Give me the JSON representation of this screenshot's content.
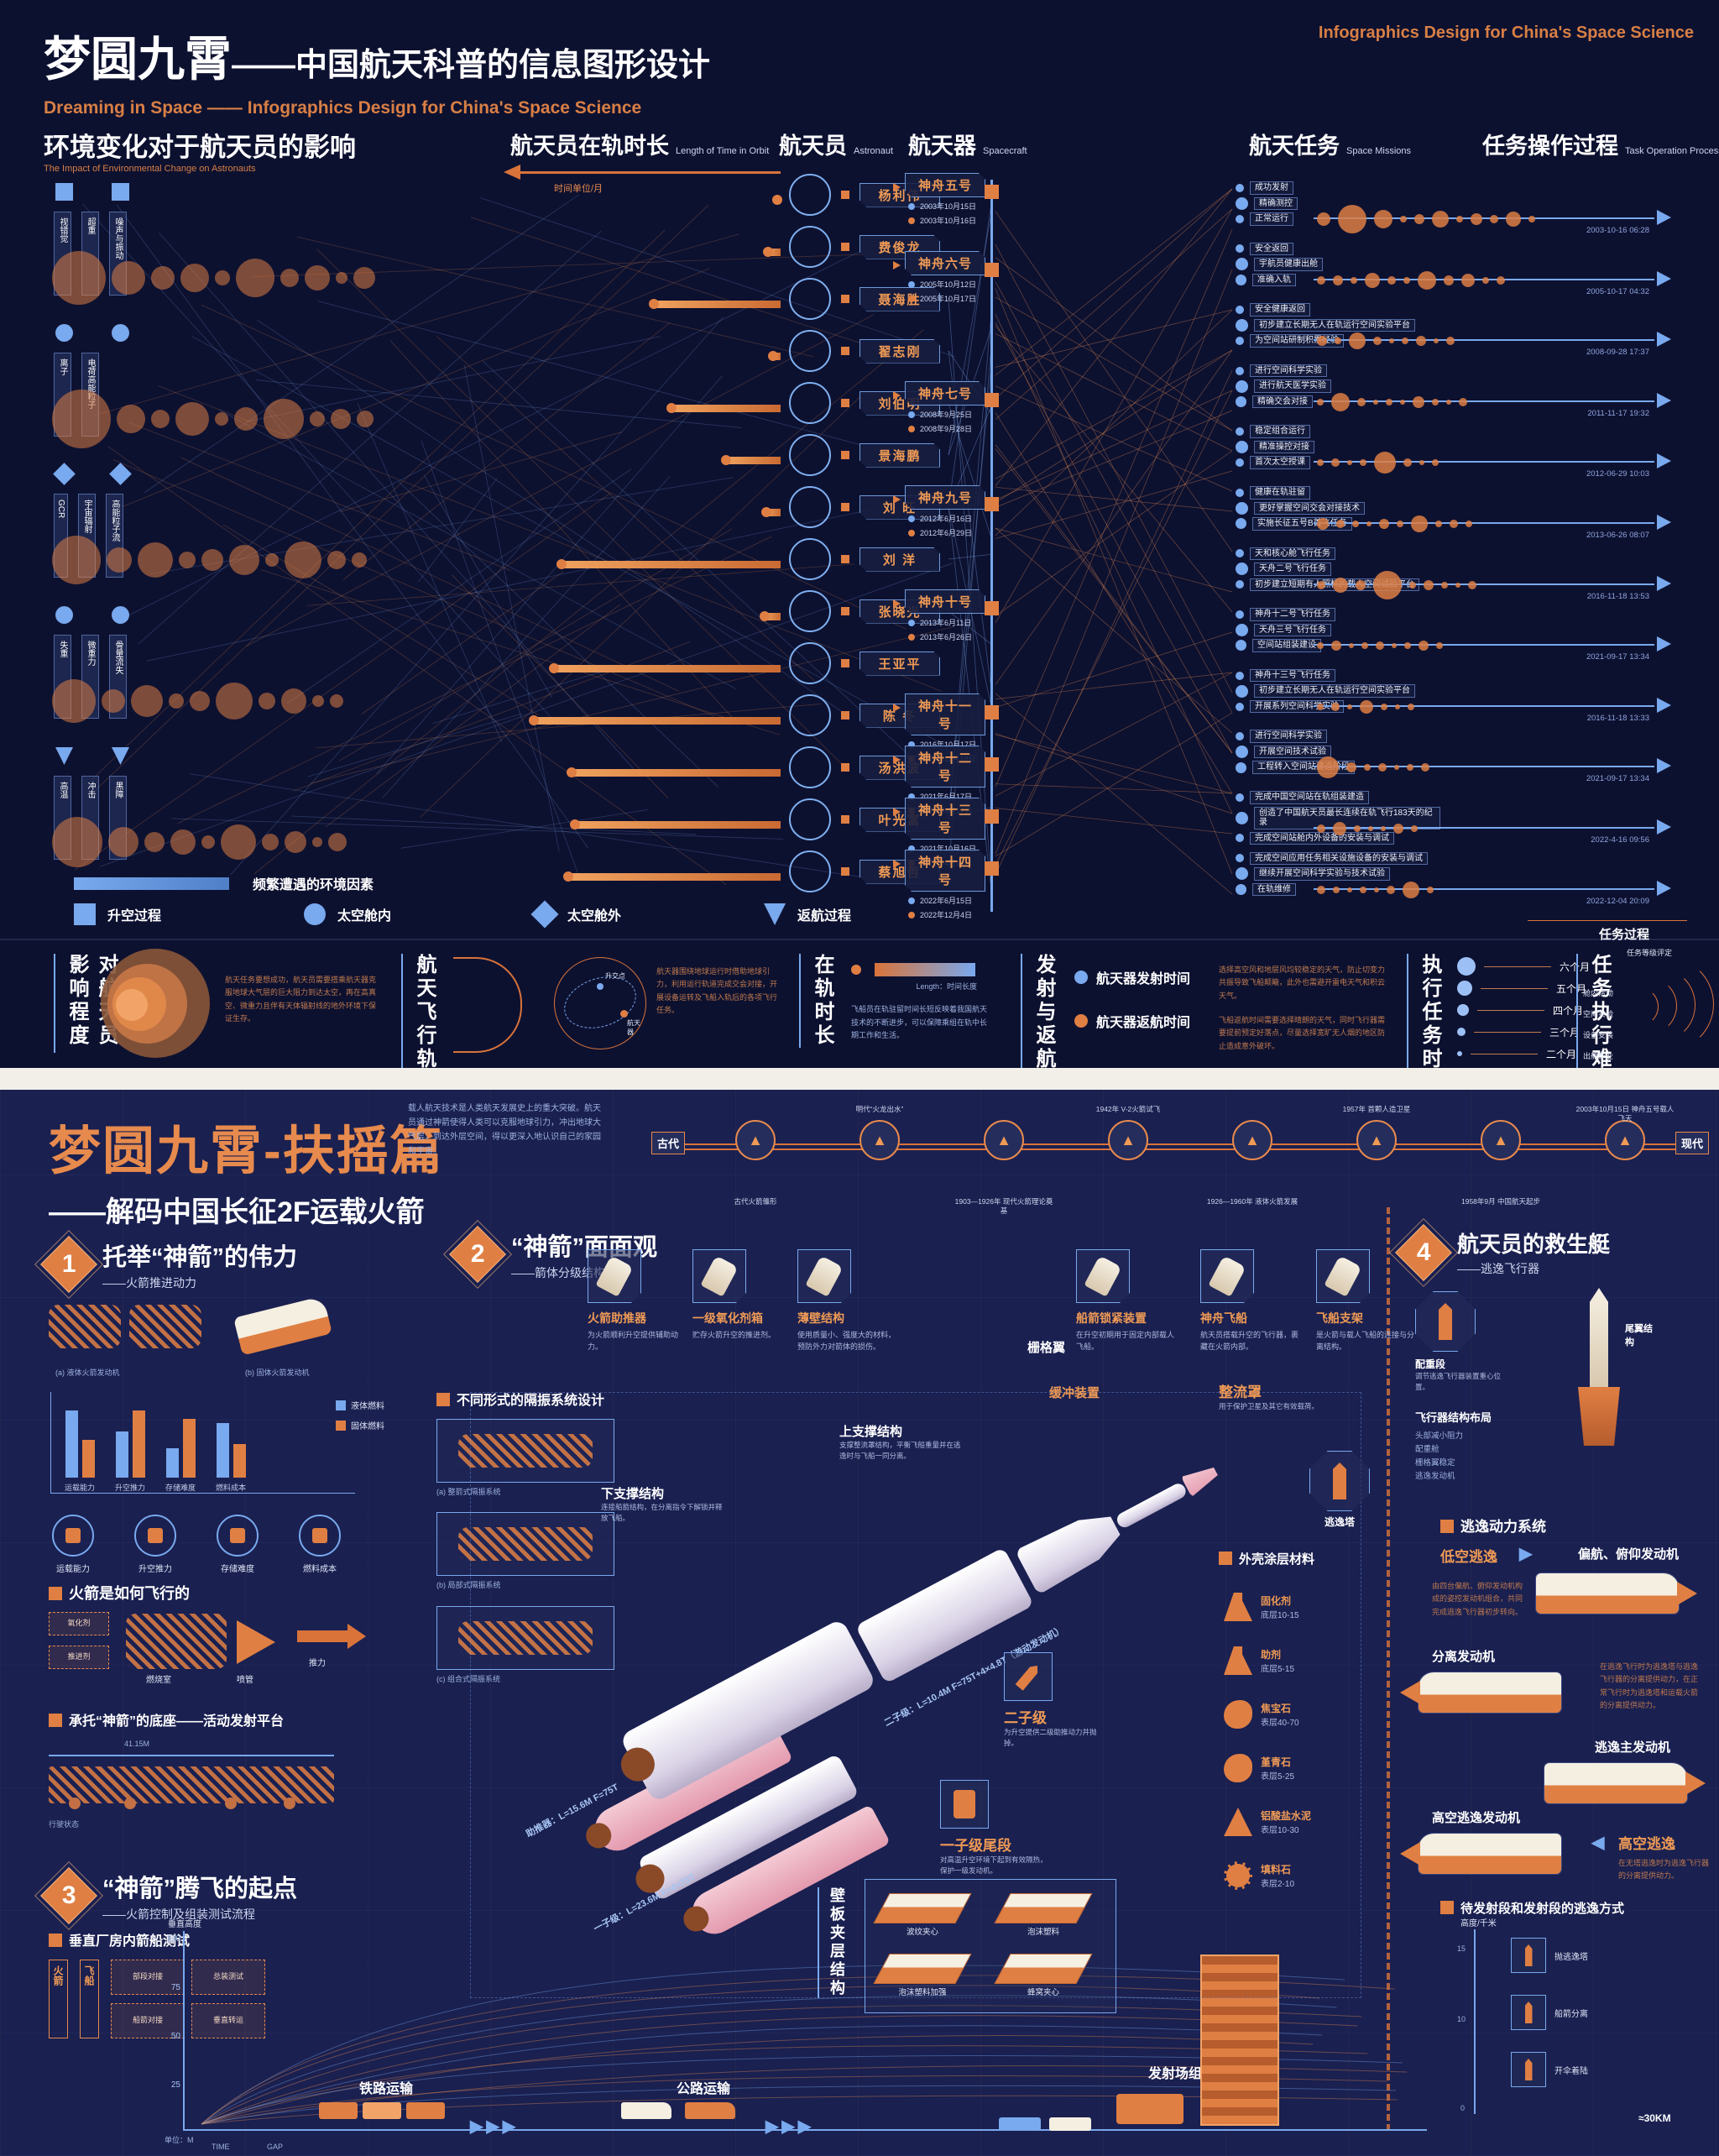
{
  "header": {
    "title_main": "梦圆九霄",
    "title_rest": "——中国航天科普的信息图形设计",
    "subtitle": "Dreaming in Space —— Infographics Design for China's Space Science",
    "corner": "Infographics Design for China's Space Science"
  },
  "cols": {
    "time": "航天员在轨时长",
    "time_en": "Length of Time in Orbit",
    "astro": "航天员",
    "astro_en": "Astronaut",
    "craft": "航天器",
    "craft_en": "Spacecraft",
    "mission": "航天任务",
    "mission_en": "Space Missions",
    "task": "任务操作过程",
    "task_en": "Task Operation Process",
    "axis_label": "时间单位/月"
  },
  "env": {
    "title": "环境变化对于航天员的影响",
    "title_en": "The Impact of Environmental Change on Astronauts",
    "legend_bar": "频繁遭遇的环境因素",
    "legend_items": [
      {
        "shape": "square",
        "label": "升空过程"
      },
      {
        "shape": "circle",
        "label": "太空舱内"
      },
      {
        "shape": "diamond",
        "label": "太空舱外"
      },
      {
        "shape": "triangle",
        "label": "返航过程"
      }
    ],
    "rows": [
      {
        "shape": "square",
        "labels": [
          "视错觉",
          "超重",
          "噪声与振动"
        ],
        "bubbles": [
          64,
          40,
          28,
          34,
          18,
          46,
          22,
          30,
          14,
          26
        ]
      },
      {
        "shape": "circle",
        "labels": [
          "离子",
          "电荷高能粒子"
        ],
        "bubbles": [
          70,
          34,
          22,
          40,
          16,
          28,
          48,
          18,
          24,
          20
        ]
      },
      {
        "shape": "diamond",
        "labels": [
          "GCR",
          "宇宙辐射",
          "高能粒子流"
        ],
        "bubbles": [
          58,
          30,
          42,
          20,
          26,
          36,
          16,
          44,
          22,
          18
        ]
      },
      {
        "shape": "circle",
        "labels": [
          "失重",
          "微重力",
          "骨量流失"
        ],
        "bubbles": [
          52,
          28,
          38,
          18,
          24,
          44,
          20,
          30,
          14,
          16
        ]
      },
      {
        "shape": "triangle",
        "labels": [
          "高温",
          "冲击",
          "黑障"
        ],
        "bubbles": [
          60,
          36,
          24,
          30,
          16,
          42,
          20,
          26,
          12,
          22
        ]
      }
    ]
  },
  "astronauts": [
    {
      "name": "杨利伟",
      "months": 0.12
    },
    {
      "name": "费俊龙",
      "months": 0.4
    },
    {
      "name": "聂海胜",
      "months": 3.7
    },
    {
      "name": "翟志刚",
      "months": 0.25
    },
    {
      "name": "刘伯明",
      "months": 3.2
    },
    {
      "name": "景海鹏",
      "months": 1.6
    },
    {
      "name": "刘  旺",
      "months": 0.45
    },
    {
      "name": "刘  洋",
      "months": 6.4
    },
    {
      "name": "张晓光",
      "months": 0.5
    },
    {
      "name": "王亚平",
      "months": 6.6
    },
    {
      "name": "陈  冬",
      "months": 7.2
    },
    {
      "name": "汤洪波",
      "months": 6.1
    },
    {
      "name": "叶光富",
      "months": 6.0
    },
    {
      "name": "蔡旭哲",
      "months": 6.2
    }
  ],
  "spacecraft": [
    {
      "name": "神舟五号",
      "launch": "2003年10月15日",
      "ret": "2003年10月16日",
      "row": 0
    },
    {
      "name": "神舟六号",
      "launch": "2005年10月12日",
      "ret": "2005年10月17日",
      "row": 1.5
    },
    {
      "name": "神舟七号",
      "launch": "2008年9月25日",
      "ret": "2008年9月28日",
      "row": 4
    },
    {
      "name": "神舟九号",
      "launch": "2012年6月16日",
      "ret": "2012年6月29日",
      "row": 6
    },
    {
      "name": "神舟十号",
      "launch": "2013年6月11日",
      "ret": "2013年6月26日",
      "row": 8
    },
    {
      "name": "神舟十一号",
      "launch": "2016年10月17日",
      "ret": "2016年11月18日",
      "row": 10
    },
    {
      "name": "神舟十二号",
      "launch": "2021年6月17日",
      "ret": "2021年9月17日",
      "row": 11
    },
    {
      "name": "神舟十三号",
      "launch": "2021年10月16日",
      "ret": "2022年4月16日",
      "row": 12
    },
    {
      "name": "神舟十四号",
      "launch": "2022年6月15日",
      "ret": "2022年12月4日",
      "row": 13
    }
  ],
  "missions": {
    "groups": [
      {
        "items": [
          "成功发射",
          "精确测控",
          "正常运行"
        ]
      },
      {
        "items": [
          "安全返回",
          "宇航员健康出舱",
          "准确入轨"
        ]
      },
      {
        "items": [
          "安全健康返回",
          "初步建立长期无人在轨运行空间实验平台",
          "为空间站研制积累经验"
        ]
      },
      {
        "items": [
          "进行空间科学实验",
          "进行航天医学实验",
          "精确交会对接"
        ]
      },
      {
        "items": [
          "稳定组合运行",
          "精准操控对接",
          "首次太空授课"
        ]
      },
      {
        "items": [
          "健康在轨驻留",
          "更好掌握空间交会对接技术",
          "实施长征五号B首飞任务"
        ]
      },
      {
        "items": [
          "天和核心舱飞行任务",
          "天舟二号飞行任务",
          "初步建立短期有人照料的载人空间试验平台"
        ]
      },
      {
        "items": [
          "神舟十二号飞行任务",
          "天舟三号飞行任务",
          "空间站组装建设"
        ]
      },
      {
        "items": [
          "神舟十三号飞行任务",
          "初步建立长期无人在轨运行空间实验平台",
          "开展系列空间科学实验"
        ]
      },
      {
        "items": [
          "进行空间科学实验",
          "开展空间技术试验",
          "工程转入空间站建造阶段"
        ]
      },
      {
        "items": [
          "完成中国空间站在轨组装建造",
          "创造了中国航天员最长连续在轨飞行183天的纪录",
          "完成空间站舱内外设备的安装与调试"
        ]
      },
      {
        "items": [
          "完成空间应用任务相关设施设备的安装与调试",
          "继续开展空间科学实验与技术试验",
          "在轨维修"
        ]
      }
    ]
  },
  "timelines": [
    {
      "date": "2003-10-16 06:28",
      "bubbles": [
        16,
        34,
        22,
        8,
        12,
        20,
        8,
        14,
        10,
        18,
        8
      ]
    },
    {
      "date": "2005-10-17 04:32",
      "bubbles": [
        10,
        12,
        8,
        18,
        10,
        8,
        22,
        12,
        16,
        8,
        10
      ]
    },
    {
      "date": "2008-09-28 17:37",
      "bubbles": [
        12,
        8,
        20,
        10,
        6,
        8,
        12,
        6,
        10
      ]
    },
    {
      "date": "2011-11-17 19:32",
      "bubbles": [
        8,
        22,
        10,
        6,
        8,
        6,
        14,
        8,
        6,
        10
      ]
    },
    {
      "date": "2012-06-29 10:03",
      "bubbles": [
        8,
        10,
        6,
        8,
        26,
        10,
        6,
        8
      ]
    },
    {
      "date": "2013-06-26 08:07",
      "bubbles": [
        14,
        10,
        8,
        6,
        12,
        8,
        20,
        8,
        10,
        8
      ]
    },
    {
      "date": "2016-11-18 13:53",
      "bubbles": [
        10,
        18,
        12,
        34,
        8,
        12,
        8,
        6,
        10
      ]
    },
    {
      "date": "2021-09-17 13:34",
      "bubbles": [
        8,
        12,
        6,
        8,
        10,
        6,
        8,
        12,
        8
      ]
    },
    {
      "date": "2016-11-18 13:33",
      "bubbles": [
        8,
        10,
        6,
        16,
        8,
        6,
        8
      ]
    },
    {
      "date": "2021-09-17 13:34",
      "bubbles": [
        26,
        12,
        8,
        10,
        6,
        8,
        10
      ]
    },
    {
      "date": "2022-4-16 09:56",
      "bubbles": [
        10,
        16,
        8,
        6,
        6,
        12,
        8
      ]
    },
    {
      "date": "2022-12-04 20:09",
      "bubbles": [
        10,
        8,
        6,
        8,
        6,
        10,
        20,
        8
      ]
    }
  ],
  "task_footer": "任务过程",
  "footer": {
    "b1": {
      "title": "对航天员影响程度",
      "cap": "航天任务要想成功，航天员需要搭乘航天器克服地球大气层的巨大阻力到达太空，再在高真空、微重力且伴有天体辐射线的地外环境下保证生存。"
    },
    "b2": {
      "title": "航天飞行轨道",
      "l1": "升交点",
      "l2": "航天器",
      "cap": "航天器围绕地球运行时借助地球引力，利用运行轨道完成交会对接，开展设备运转及飞船入轨后的各项飞行任务。"
    },
    "b3": {
      "title": "在轨时长",
      "bar_label": "Length：时间长度",
      "cap": "飞船员在轨驻留时间长短反映着我国航天技术的不断进步，可以保障乘组在轨中长期工作和生活。"
    },
    "b4": {
      "title": "发射与返航",
      "l1": "航天器发射时间",
      "l2": "航天器返航时间",
      "cap1": "选择高空风和地层风均较稳定的天气，防止切变力共振导致飞船颠簸，此外也需避开雷电天气和积云天气。",
      "cap2": "飞船返航时间需要选择晴朗的天气，同时飞行器需要提前预定好落点，尽量选择宽旷无人烟的地区防止造成意外破坏。"
    },
    "b5": {
      "title": "执行任务时长",
      "items": [
        "六个月",
        "五个月",
        "四个月",
        "三个月",
        "二个月"
      ]
    },
    "b6": {
      "title": "任务执行难度",
      "arc_top": "任务等级评定",
      "labels": [
        "舱内活动",
        "空间实验",
        "设备安装",
        "出舱作业"
      ],
      "cap1": "应对多变且充满挑战的航天环境，航天员在天上的每分每秒都要完成不同的航天任务。",
      "cap2": "一次飞行之旅程中有大大小小许多作业和任务要完成，且其中任务密度和作业难度对航天员都是不同的考验。"
    }
  },
  "bp": {
    "title": "梦圆九霄-扶摇篇",
    "subtitle": "——解码中国长征2F运载火箭",
    "intro": "载人航天技术是人类航天发展史上的重大突破。航天员通过神箭使得人类可以克服地球引力，冲出地球大气层，到达外层空间，得以更深入地认识自己的家园和宇宙。",
    "hist": {
      "cap_l": "古代",
      "cap_r": "现代",
      "nodes": [
        "古代火箭雏形",
        "明代“火龙出水”",
        "1903—1926年 现代火箭理论奠基",
        "1942年 V-2火箭试飞",
        "1926—1960年 液体火箭发展",
        "1957年 首颗人造卫星",
        "1958年9月 中国航天起步",
        "2003年10月15日 神舟五号载人飞天"
      ]
    },
    "s1": {
      "num": "1",
      "title": "托举“神箭”的伟力",
      "sub": "——火箭推进动力",
      "diag_a": "(a) 液体火箭发动机",
      "diag_b": "(b) 固体火箭发动机",
      "legend1": "液体燃料",
      "legend2": "固体燃料",
      "icons": [
        "运载能力",
        "升空推力",
        "存储难度",
        "燃料成本"
      ],
      "fly_head": "火箭是如何飞行的",
      "fly_labels": {
        "a": "氧化剂",
        "b": "推进剂",
        "c": "燃烧室",
        "d": "喷管",
        "e": "推力"
      },
      "base_head": "承托“神箭”的底座——活动发射平台",
      "base_dim": "41.15M",
      "base_cap": "行驶状态"
    },
    "s1_chart": {
      "type": "bar",
      "categories": [
        "运载能力",
        "升空推力",
        "存储难度",
        "燃料成本"
      ],
      "series": [
        {
          "name": "液体燃料",
          "values": [
            80,
            55,
            35,
            65
          ]
        },
        {
          "name": "固体燃料",
          "values": [
            45,
            80,
            70,
            40
          ]
        }
      ]
    },
    "s2": {
      "num": "2",
      "title": "“神箭”面面观",
      "sub": "——箭体分级结构",
      "iso_head": "不同形式的隔振系统设计",
      "iso_items": [
        "(a) 整箭式隔振系统",
        "(b) 局部式隔振系统",
        "(c) 组合式隔振系统"
      ],
      "cards": [
        {
          "n": "火箭助推器",
          "c": "为火箭顺利升空提供辅助动力。"
        },
        {
          "n": "一级氧化剂箱",
          "c": "贮存火箭升空的推进剂。"
        },
        {
          "n": "薄壁结构",
          "c": "使用质量小、强度大的材料，预防外力对箭体的损伤。"
        },
        {
          "n": "船箭锁紧装置",
          "c": "在升空初期用于固定内部载人飞船。"
        },
        {
          "n": "神舟飞船",
          "c": "航天员搭载升空的飞行器，裹藏在火箭内部。"
        },
        {
          "n": "飞船支架",
          "c": "是火箭与载人飞船的连接与分离结构。"
        }
      ],
      "grid_fin": "栅格翼",
      "buffer": "缓冲装置",
      "upper": "上支撑结构",
      "upper_cap": "支撑整流罩结构，平衡飞船重量并在逃逸时与飞船一同分离。",
      "lower": "下支撑结构",
      "lower_cap": "连接船箭结构，在分离指令下解锁并释放飞船。",
      "fairing": "整流罩",
      "fairing_cap": "用于保护卫星及其它有效载荷。",
      "tower": "逃逸塔",
      "stage2": "二子级",
      "stage2_cap": "为升空提供二级助推动力并抛掉。",
      "tail": "一子级尾段",
      "tail_cap": "对高温升空环境下起到有效隔热，保护一级发动机。",
      "dim1": "助推器：L=15.6M  F=75T",
      "dim2": "一子级：L=23.6M  F=4×75T",
      "dim3": "二子级：L=10.4M  F=75T+4×4.8T（游动发动机）",
      "coat_head": "外壳涂层材料",
      "materials": [
        {
          "n": "固化剂",
          "r": "底层10-15",
          "ic": "flask"
        },
        {
          "n": "助剂",
          "r": "底层5-15",
          "ic": "flask"
        },
        {
          "n": "焦宝石",
          "r": "表层40-70",
          "ic": "stone"
        },
        {
          "n": "堇青石",
          "r": "表层5-25",
          "ic": "stone"
        },
        {
          "n": "铝酸盐水泥",
          "r": "表层10-30",
          "ic": "cone"
        },
        {
          "n": "填料石",
          "r": "表层2-10",
          "ic": "gear"
        }
      ],
      "sand_head": "壁板夹层结构",
      "sandwich": [
        "波纹夹心",
        "泡沫塑料",
        "泡沫塑料加强",
        "蜂窝夹心"
      ]
    },
    "s3": {
      "num": "3",
      "title": "“神箭”腾飞的起点",
      "sub": "——火箭控制及组装测试流程",
      "vab": "垂直厂房内箭船测试",
      "tags": [
        "火箭",
        "飞船"
      ],
      "steps": [
        "部段对接",
        "总装测试",
        "船箭对接",
        "垂直转运"
      ],
      "axis_label": "垂直高度",
      "unit": "单位：M",
      "ticks": [
        "100",
        "75",
        "50",
        "25"
      ],
      "x1": "TIME",
      "x2": "GAP",
      "t1": "铁路运输",
      "t2": "公路运输",
      "t3": "发射场组装",
      "arrows": "▶▶▶"
    },
    "s4": {
      "num": "4",
      "title": "航天员的救生艇",
      "sub": "——逃逸飞行器",
      "oct1": "配重段",
      "oct1_cap": "调节逃逸飞行器装置重心位置。",
      "layout_head": "飞行器结构布局",
      "layout_items": [
        "头部减小阻力",
        "配重舱",
        "栅格翼稳定",
        "逃逸发动机"
      ],
      "tail_fin": "尾翼结构",
      "power_head": "逃逸动力系统",
      "low": "低空逃逸",
      "yaw": "偏航、俯仰发动机",
      "yaw_cap": "由四台偏航、俯仰发动机构成的姿控发动机组合，共同完成逃逸飞行器初步转向。",
      "sep": "分离发动机",
      "sep_cap": "在逃逸飞行时为逃逸塔与逃逸飞行器的分离提供动力，在正常飞行时为逃逸塔和运载火箭的分离提供动力。",
      "main": "逃逸主发动机",
      "high_eng": "高空逃逸发动机",
      "high": "高空逃逸",
      "high_cap": "在无塔逃逸时为逃逸飞行器的分离提供动力。",
      "mode_head": "待发射段和发射段的逃逸方式",
      "alt_axis": "高度/千米",
      "alt_ticks": [
        "15",
        "10",
        "0"
      ],
      "alt_items": [
        "抛逃逸塔",
        "船箭分离",
        "开伞着陆"
      ],
      "alt_note": "≈30KM"
    }
  }
}
